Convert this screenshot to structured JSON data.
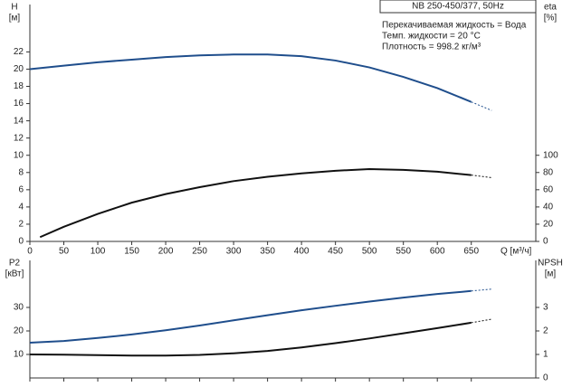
{
  "chart_data": [
    {
      "type": "line",
      "box_label": "NB 250-450/377, 50Hz",
      "notes": [
        "Перекачиваемая жидкость = Вода",
        "Темп. жидкости = 20 °C",
        "Плотность = 998.2 кг/м³"
      ],
      "y_label": "H",
      "y_unit": "[м]",
      "y2_label": "eta",
      "y2_unit": "[%]",
      "x_label": "Q [м³/ч]",
      "xlim": [
        0,
        745
      ],
      "xticks": [
        0,
        50,
        100,
        150,
        200,
        250,
        300,
        350,
        400,
        450,
        500,
        550,
        600,
        650
      ],
      "xtick_labels": true,
      "ylim": [
        0,
        27.5
      ],
      "yticks": [
        0,
        2,
        4,
        6,
        8,
        10,
        12,
        14,
        16,
        18,
        20,
        22
      ],
      "y2lim": [
        0,
        275
      ],
      "y2ticks": [
        0,
        20,
        40,
        60,
        80,
        100
      ],
      "series": [
        {
          "color": "#1f4e8c",
          "dash_start": 650,
          "x": [
            0,
            50,
            100,
            150,
            200,
            250,
            300,
            350,
            400,
            450,
            500,
            550,
            600,
            650,
            680
          ],
          "values": [
            20.0,
            20.4,
            20.8,
            21.1,
            21.4,
            21.6,
            21.7,
            21.7,
            21.5,
            21.0,
            20.2,
            19.1,
            17.8,
            16.2,
            15.2
          ]
        },
        {
          "color": "#111111",
          "dash_start": 650,
          "axis": "y2",
          "x": [
            15,
            50,
            100,
            150,
            200,
            250,
            300,
            350,
            400,
            450,
            500,
            550,
            600,
            650,
            680
          ],
          "values": [
            5,
            17,
            32,
            45,
            55,
            63,
            70,
            75,
            79,
            82,
            84,
            83,
            81,
            77,
            74
          ]
        }
      ]
    },
    {
      "type": "line",
      "y_label": "P2",
      "y_unit": "[кВт]",
      "y2_label": "NPSH",
      "y2_unit": "[м]",
      "xlim": [
        0,
        745
      ],
      "xticks": [
        0,
        50,
        100,
        150,
        200,
        250,
        300,
        350,
        400,
        450,
        500,
        550,
        600,
        650
      ],
      "xtick_labels": false,
      "ylim": [
        0,
        50
      ],
      "yticks": [
        10,
        20,
        30
      ],
      "y2lim": [
        0,
        5
      ],
      "y2ticks": [
        0,
        1,
        2,
        3
      ],
      "series": [
        {
          "color": "#1f4e8c",
          "dash_start": 650,
          "x": [
            0,
            50,
            100,
            150,
            200,
            250,
            300,
            350,
            400,
            450,
            500,
            550,
            600,
            650,
            680
          ],
          "values": [
            15,
            15.7,
            17,
            18.5,
            20.3,
            22.3,
            24.5,
            26.7,
            28.8,
            30.7,
            32.5,
            34.2,
            35.7,
            37.0,
            37.8
          ]
        },
        {
          "color": "#111111",
          "dash_start": 650,
          "axis": "y2",
          "x": [
            0,
            50,
            100,
            150,
            200,
            250,
            300,
            350,
            400,
            450,
            500,
            550,
            600,
            650,
            680
          ],
          "values": [
            1.0,
            0.99,
            0.97,
            0.95,
            0.95,
            0.98,
            1.05,
            1.15,
            1.3,
            1.48,
            1.68,
            1.9,
            2.12,
            2.35,
            2.5
          ]
        }
      ]
    }
  ]
}
